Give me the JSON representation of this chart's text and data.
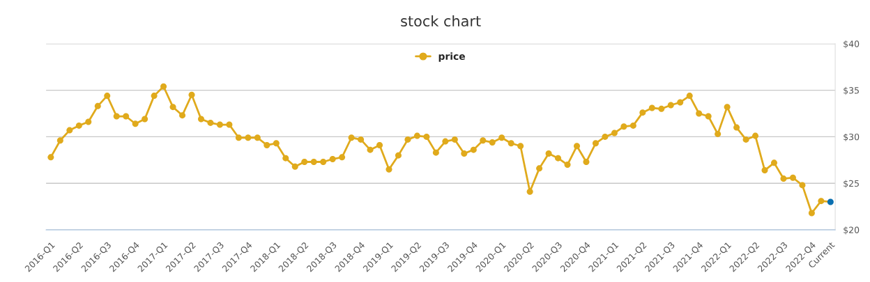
{
  "chart_data": {
    "type": "line",
    "title": "stock chart",
    "categories": [
      "2016-Q1",
      null,
      null,
      "2016-Q2",
      null,
      null,
      "2016-Q3",
      null,
      null,
      "2016-Q4",
      null,
      null,
      "2017-Q1",
      null,
      null,
      "2017-Q2",
      null,
      null,
      "2017-Q3",
      null,
      null,
      "2017-Q4",
      null,
      null,
      "2018-Q1",
      null,
      null,
      "2018-Q2",
      null,
      null,
      "2018-Q3",
      null,
      null,
      "2018-Q4",
      null,
      null,
      "2019-Q1",
      null,
      null,
      "2019-Q2",
      null,
      null,
      "2019-Q3",
      null,
      null,
      "2019-Q4",
      null,
      null,
      "2020-Q1",
      null,
      null,
      "2020-Q2",
      null,
      null,
      "2020-Q3",
      null,
      null,
      "2020-Q4",
      null,
      null,
      "2021-Q1",
      null,
      null,
      "2021-Q2",
      null,
      null,
      "2021-Q3",
      null,
      null,
      "2021-Q4",
      null,
      null,
      "2022-Q1",
      null,
      null,
      "2022-Q2",
      null,
      null,
      "2022-Q3",
      null,
      null,
      "2022-Q4",
      null,
      "Current"
    ],
    "series": [
      {
        "name": "price",
        "color": "#e0aa1c",
        "values": [
          27.8,
          29.6,
          30.7,
          31.2,
          31.6,
          33.3,
          34.4,
          32.2,
          32.2,
          31.4,
          31.9,
          34.4,
          35.4,
          33.2,
          32.3,
          34.5,
          31.9,
          31.5,
          31.3,
          31.3,
          29.9,
          29.9,
          29.9,
          29.1,
          29.3,
          27.7,
          26.8,
          27.3,
          27.3,
          27.3,
          27.6,
          27.8,
          29.9,
          29.7,
          28.6,
          29.1,
          26.5,
          28.0,
          29.7,
          30.1,
          30.0,
          28.3,
          29.5,
          29.7,
          28.2,
          28.6,
          29.6,
          29.4,
          29.9,
          29.3,
          29.0,
          24.1,
          26.6,
          28.2,
          27.7,
          27.0,
          29.0,
          27.3,
          29.3,
          30.0,
          30.4,
          31.1,
          31.2,
          32.6,
          33.1,
          33.0,
          33.4,
          33.7,
          34.4,
          32.5,
          32.2,
          30.3,
          33.2,
          31.0,
          29.7,
          30.1,
          26.4,
          27.2,
          25.5,
          25.6,
          24.8,
          21.8,
          23.1,
          23.0
        ],
        "colors": [
          "#e0aa1c",
          "#e0aa1c",
          "#e0aa1c",
          "#e0aa1c",
          "#e0aa1c",
          "#e0aa1c",
          "#e0aa1c",
          "#e0aa1c",
          "#e0aa1c",
          "#e0aa1c",
          "#e0aa1c",
          "#e0aa1c",
          "#e0aa1c",
          "#e0aa1c",
          "#e0aa1c",
          "#e0aa1c",
          "#e0aa1c",
          "#e0aa1c",
          "#e0aa1c",
          "#e0aa1c",
          "#e0aa1c",
          "#e0aa1c",
          "#e0aa1c",
          "#e0aa1c",
          "#e0aa1c",
          "#e0aa1c",
          "#e0aa1c",
          "#e0aa1c",
          "#e0aa1c",
          "#e0aa1c",
          "#e0aa1c",
          "#e0aa1c",
          "#e0aa1c",
          "#e0aa1c",
          "#e0aa1c",
          "#e0aa1c",
          "#e0aa1c",
          "#e0aa1c",
          "#e0aa1c",
          "#e0aa1c",
          "#e0aa1c",
          "#e0aa1c",
          "#e0aa1c",
          "#e0aa1c",
          "#e0aa1c",
          "#e0aa1c",
          "#e0aa1c",
          "#e0aa1c",
          "#e0aa1c",
          "#e0aa1c",
          "#e0aa1c",
          "#e0aa1c",
          "#e0aa1c",
          "#e0aa1c",
          "#e0aa1c",
          "#e0aa1c",
          "#e0aa1c",
          "#e0aa1c",
          "#e0aa1c",
          "#e0aa1c",
          "#e0aa1c",
          "#e0aa1c",
          "#e0aa1c",
          "#e0aa1c",
          "#e0aa1c",
          "#e0aa1c",
          "#e0aa1c",
          "#e0aa1c",
          "#e0aa1c",
          "#e0aa1c",
          "#e0aa1c",
          "#e0aa1c",
          "#e0aa1c",
          "#e0aa1c",
          "#e0aa1c",
          "#e0aa1c",
          "#e0aa1c",
          "#e0aa1c",
          "#e0aa1c",
          "#e0aa1c",
          "#e0aa1c",
          "#e0aa1c",
          "#e0aa1c",
          "#0a6fb0"
        ]
      }
    ],
    "ylim": [
      20,
      40
    ],
    "yticks": [
      {
        "value": 20,
        "label": "$20"
      },
      {
        "value": 25,
        "label": "$25"
      },
      {
        "value": 30,
        "label": "$30"
      },
      {
        "value": 35,
        "label": "$35"
      },
      {
        "value": 40,
        "label": "$40"
      }
    ],
    "grid": "y",
    "legend": "top",
    "marker": "circle",
    "line_style": "solid"
  }
}
